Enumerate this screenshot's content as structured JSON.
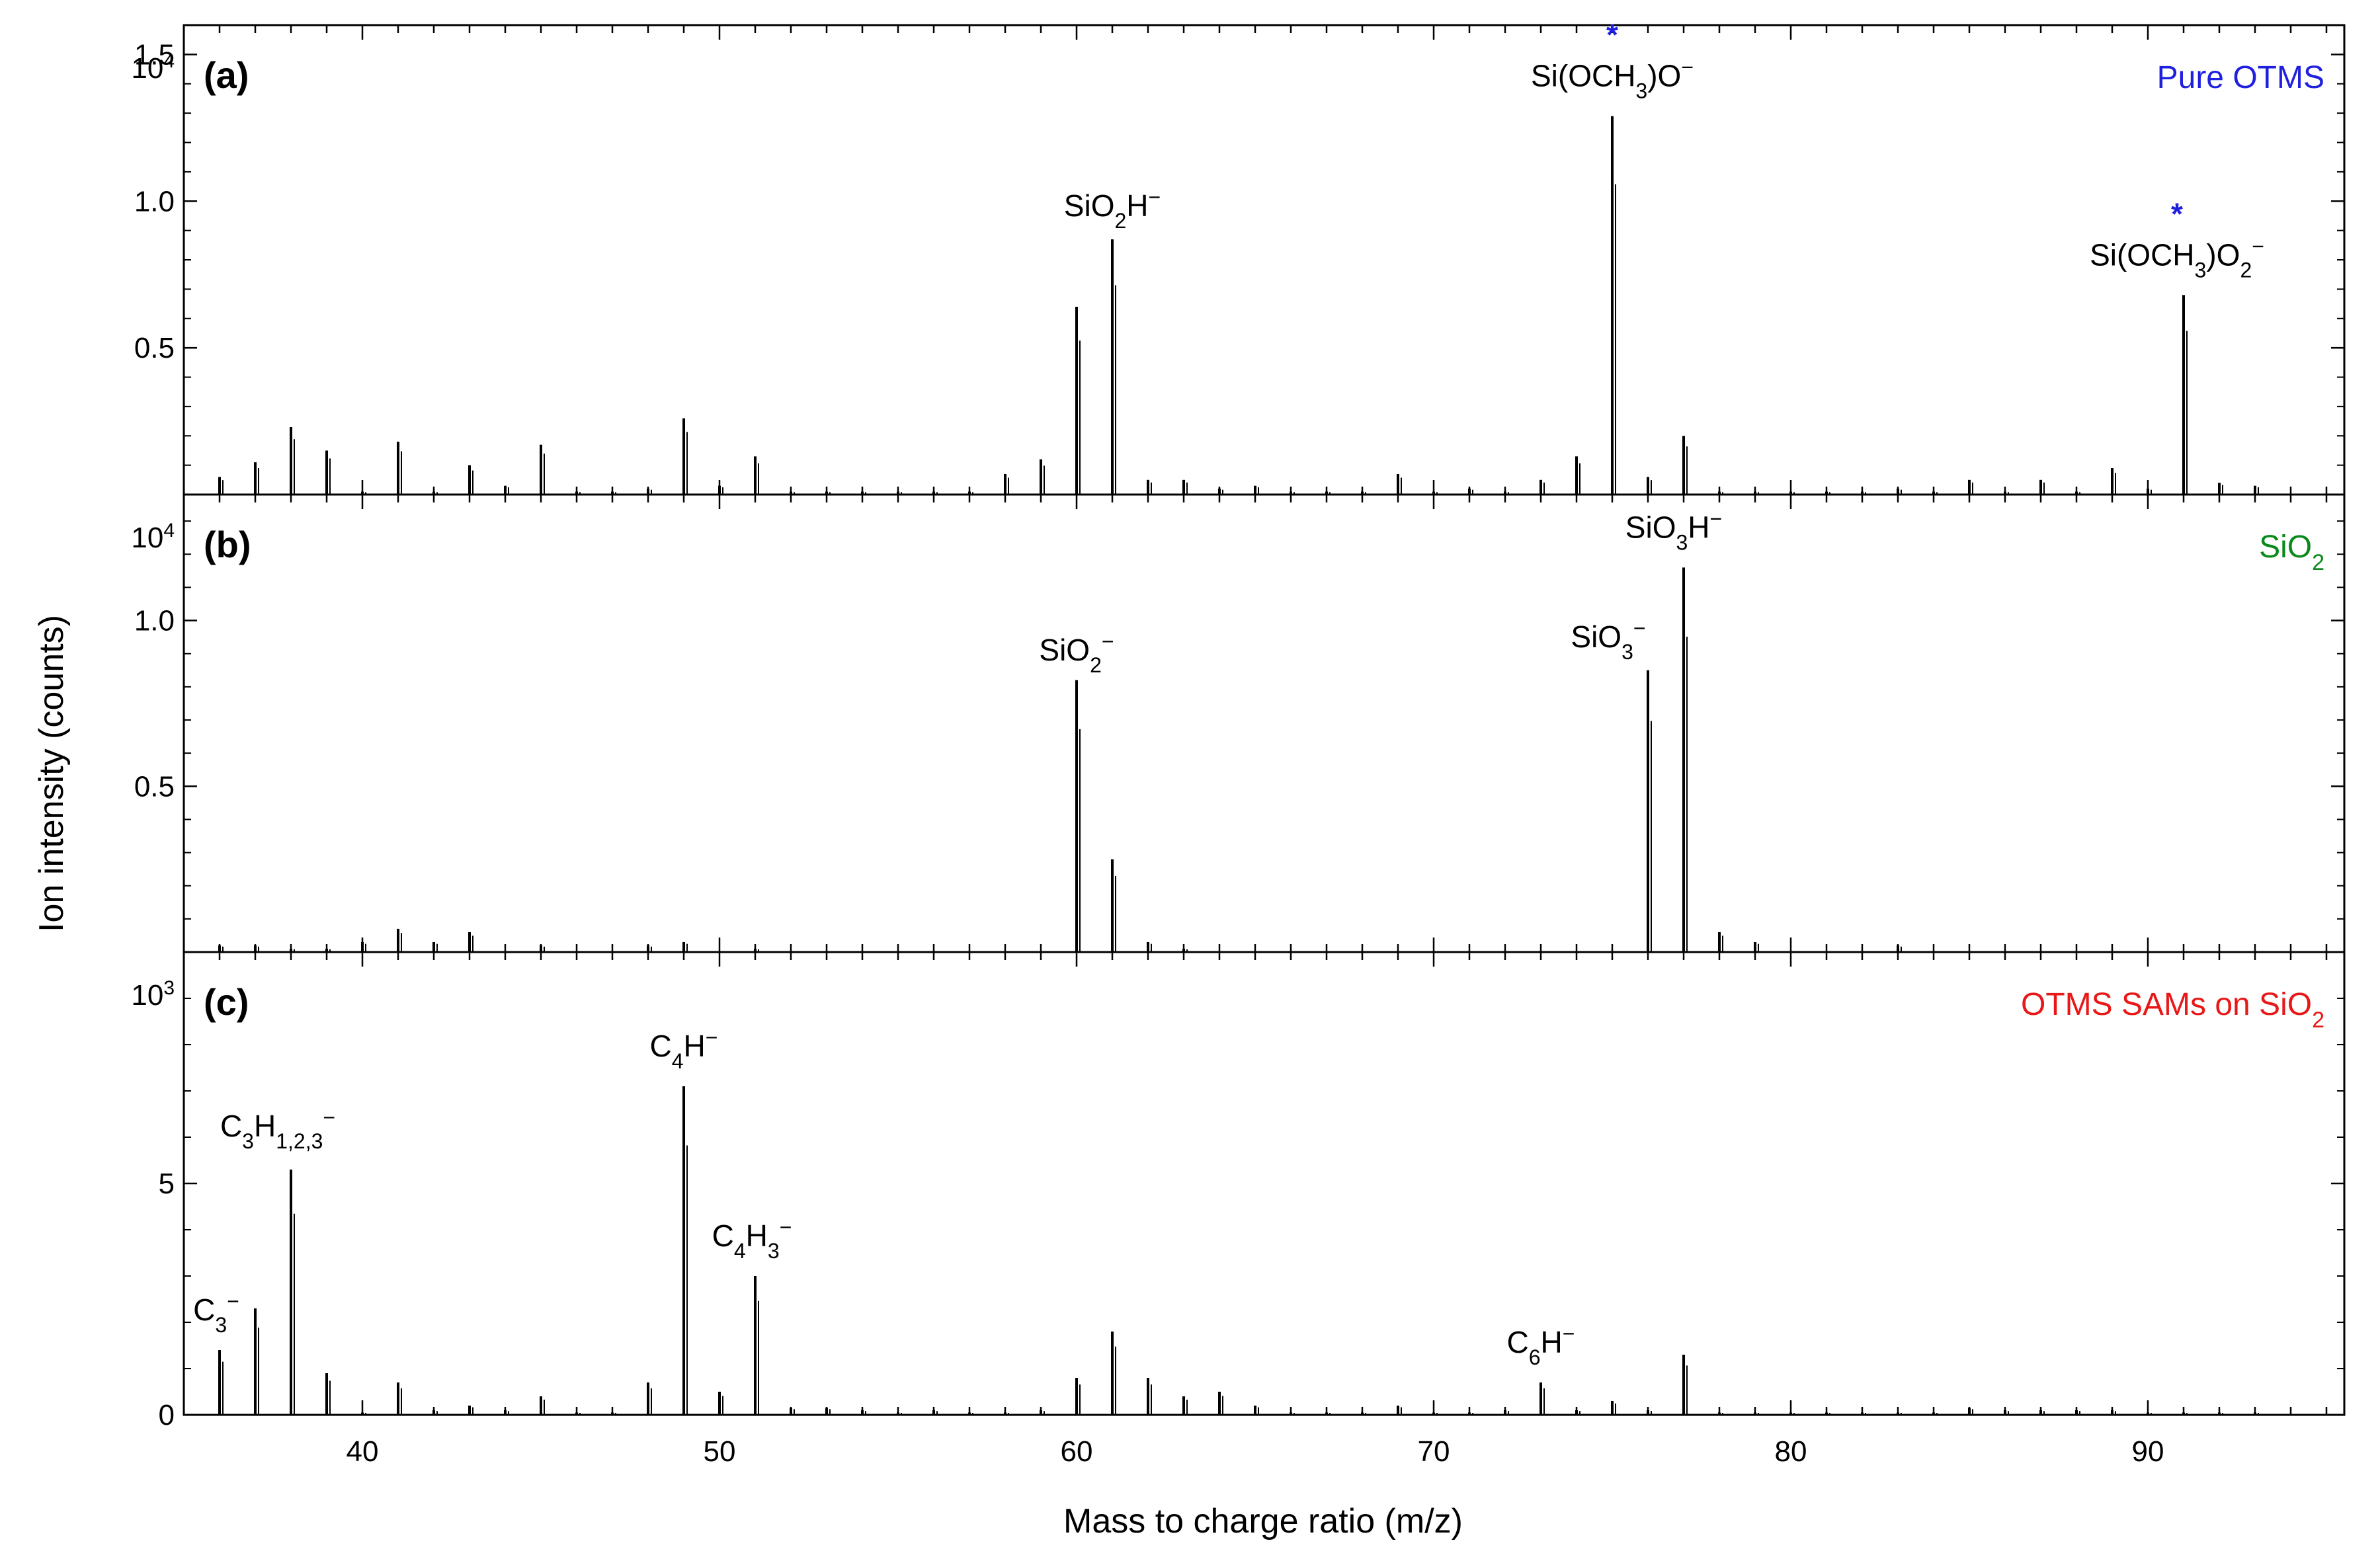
{
  "chart_data": {
    "type": "bar",
    "xlabel": "Mass to charge ratio (m/z)",
    "ylabel": "Ion intensity (counts)",
    "xlim": [
      35,
      95.5
    ],
    "xticks": [
      40,
      50,
      60,
      70,
      80,
      90
    ],
    "tick_labels": [
      "40",
      "50",
      "60",
      "70",
      "80",
      "90"
    ],
    "panels": [
      {
        "id": "(a)",
        "sample": "Pure OTMS",
        "sample_color": "#1f1fe0",
        "exponent_label": "10",
        "exponent_power": "4",
        "ylim": [
          0,
          1.6
        ],
        "yticks": [
          0.5,
          1.0,
          1.5
        ],
        "ytick_labels": [
          "0.5",
          "1.0",
          "1.5"
        ],
        "x": [
          36,
          37,
          38,
          39,
          40,
          41,
          42,
          43,
          44,
          45,
          46,
          47,
          48,
          49,
          50,
          51,
          52,
          53,
          54,
          55,
          56,
          57,
          58,
          59,
          60,
          61,
          62,
          63,
          64,
          65,
          66,
          67,
          68,
          69,
          70,
          71,
          72,
          73,
          74,
          75,
          76,
          77,
          78,
          79,
          80,
          81,
          82,
          83,
          84,
          85,
          86,
          87,
          88,
          89,
          90,
          91,
          92,
          93
        ],
        "values": [
          0.06,
          0.11,
          0.23,
          0.15,
          0.01,
          0.18,
          0.01,
          0.1,
          0.03,
          0.17,
          0.01,
          0.01,
          0.02,
          0.26,
          0.03,
          0.13,
          0.01,
          0.01,
          0.01,
          0.01,
          0.01,
          0.01,
          0.07,
          0.12,
          0.64,
          0.87,
          0.05,
          0.05,
          0.02,
          0.03,
          0.01,
          0.01,
          0.01,
          0.07,
          0.01,
          0.02,
          0.01,
          0.05,
          0.13,
          1.29,
          0.06,
          0.2,
          0.01,
          0.01,
          0.01,
          0.01,
          0.01,
          0.02,
          0.01,
          0.05,
          0.01,
          0.05,
          0.01,
          0.09,
          0.02,
          0.68,
          0.04,
          0.03
        ],
        "labels": [
          {
            "x": 61,
            "text": "SiO2H−",
            "base": "SiO",
            "sub": "2",
            "tail": "H",
            "sup": "−"
          },
          {
            "x": 75,
            "text": "Si(OCH3)O−",
            "base": "Si(OCH",
            "sub": "3",
            "tail": ")O",
            "sup": "−",
            "marker": "*"
          },
          {
            "x": 91,
            "text": "Si(OCH3)O2−",
            "base": "Si(OCH",
            "sub": "3",
            "tail": ")O",
            "sub2": "2",
            "sup": "−",
            "marker": "*"
          }
        ]
      },
      {
        "id": "(b)",
        "sample": "SiO2",
        "sample_base": "SiO",
        "sample_sub": "2",
        "sample_color": "#0a8a1a",
        "exponent_label": "10",
        "exponent_power": "4",
        "ylim": [
          0,
          1.38
        ],
        "yticks": [
          0.5,
          1.0
        ],
        "ytick_labels": [
          "0.5",
          "1.0"
        ],
        "x": [
          36,
          37,
          38,
          39,
          40,
          41,
          42,
          43,
          45,
          48,
          49,
          51,
          60,
          61,
          62,
          63,
          76,
          77,
          78,
          79,
          83
        ],
        "values": [
          0.02,
          0.02,
          0.01,
          0.01,
          0.03,
          0.07,
          0.03,
          0.06,
          0.02,
          0.02,
          0.03,
          0.01,
          0.82,
          0.28,
          0.03,
          0.01,
          0.85,
          1.16,
          0.06,
          0.03,
          0.02
        ],
        "labels": [
          {
            "x": 60,
            "text": "SiO2−",
            "base": "SiO",
            "sub": "2",
            "tail": "",
            "sup": "−"
          },
          {
            "x": 76,
            "text": "SiO3−",
            "base": "SiO",
            "sub": "3",
            "tail": "",
            "sup": "−"
          },
          {
            "x": 77,
            "text": "SiO3H−",
            "base": "SiO",
            "sub": "3",
            "tail": "H",
            "sup": "−"
          }
        ]
      },
      {
        "id": "(c)",
        "sample": "OTMS SAMs on SiO2",
        "sample_base": "OTMS SAMs on SiO",
        "sample_sub": "2",
        "sample_color": "#e81818",
        "exponent_label": "10",
        "exponent_power": "3",
        "ylim": [
          0,
          10
        ],
        "yticks": [
          0,
          5
        ],
        "ytick_labels": [
          "0",
          "5"
        ],
        "x": [
          36,
          37,
          38,
          39,
          40,
          41,
          42,
          43,
          44,
          45,
          46,
          47,
          48,
          49,
          50,
          51,
          52,
          53,
          54,
          55,
          56,
          57,
          58,
          59,
          60,
          61,
          62,
          63,
          64,
          65,
          66,
          67,
          68,
          69,
          70,
          71,
          72,
          73,
          74,
          75,
          76,
          77,
          78,
          79,
          80,
          81,
          82,
          83,
          84,
          85,
          86,
          87,
          88,
          89,
          90,
          91,
          92,
          93
        ],
        "values": [
          1.4,
          2.3,
          5.3,
          0.9,
          0.05,
          0.7,
          0.1,
          0.2,
          0.1,
          0.4,
          0.05,
          0.05,
          0.7,
          7.1,
          0.5,
          3.0,
          0.15,
          0.15,
          0.1,
          0.05,
          0.1,
          0.05,
          0.05,
          0.1,
          0.8,
          1.8,
          0.8,
          0.4,
          0.5,
          0.2,
          0.05,
          0.05,
          0.05,
          0.2,
          0.05,
          0.05,
          0.1,
          0.7,
          0.1,
          0.3,
          0.1,
          1.3,
          0.05,
          0.05,
          0.05,
          0.05,
          0.05,
          0.05,
          0.05,
          0.15,
          0.1,
          0.1,
          0.1,
          0.1,
          0.05,
          0.05,
          0.05,
          0.05
        ],
        "labels": [
          {
            "x": 36,
            "text": "C3−",
            "base": "C",
            "sub": "3",
            "tail": "",
            "sup": "−"
          },
          {
            "x": 38,
            "text": "C3H1,2,3−",
            "base": "C",
            "sub": "3",
            "tail": "H",
            "sub2": "1,2,3",
            "sup": "−"
          },
          {
            "x": 49,
            "text": "C4H−",
            "base": "C",
            "sub": "4",
            "tail": "H",
            "sup": "−"
          },
          {
            "x": 51,
            "text": "C4H3−",
            "base": "C",
            "sub": "4",
            "tail": "H",
            "sub2": "3",
            "sup": "−"
          },
          {
            "x": 73,
            "text": "C6H−",
            "base": "C",
            "sub": "6",
            "tail": "H",
            "sup": "−"
          }
        ]
      }
    ],
    "grid": false
  }
}
